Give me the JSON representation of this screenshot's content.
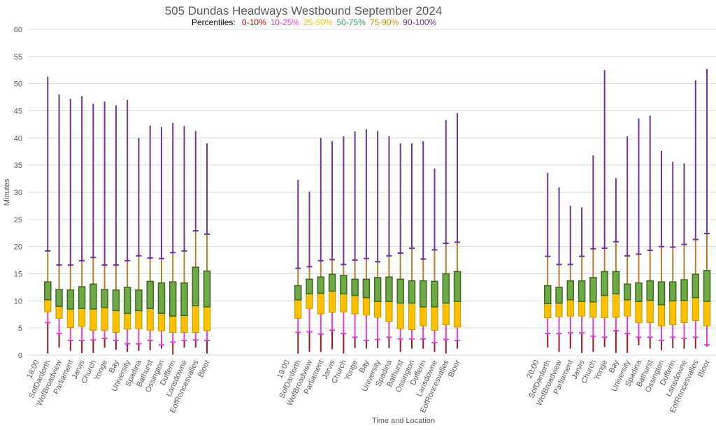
{
  "chart_data": {
    "type": "box",
    "title": "505 Dundas Headways Westbound September 2024",
    "legend_prefix": "Percentiles:",
    "legend": [
      {
        "label": "0-10%",
        "color": "#c00000"
      },
      {
        "label": "10-25%",
        "color": "#e040d8"
      },
      {
        "label": "25-50%",
        "color": "#ffc000"
      },
      {
        "label": "50-75%",
        "color": "#2e9e5e"
      },
      {
        "label": "75-90%",
        "color": "#c09000"
      },
      {
        "label": "90-100%",
        "color": "#7030a0"
      }
    ],
    "legend_placement": "top-center",
    "xlabel": "Time and Location",
    "ylabel": "Minutes",
    "ylim": [
      0,
      60
    ],
    "yticks": [
      0,
      5,
      10,
      15,
      20,
      25,
      30,
      35,
      40,
      45,
      50,
      55,
      60
    ],
    "grid": true,
    "series_colors": {
      "p0_p10": "#a01818",
      "p10_p25": "#e040d8",
      "p25_p50": "#ffc000",
      "p50_p75": "#70a845",
      "p75_p90": "#c07a30",
      "p90_p100": "#7030a0",
      "box_edge_low": "#c9a000",
      "box_edge_high": "#3a6a20"
    },
    "groups": [
      {
        "time": "18:00",
        "stations": [
          {
            "name": "SofDanforth",
            "min": 0.3,
            "p10": 6.0,
            "p25": 8.0,
            "median": 10.2,
            "p75": 13.5,
            "p90": 19.2,
            "max": 51.3
          },
          {
            "name": "WofBroadview",
            "min": 1.4,
            "p10": 4.0,
            "p25": 6.8,
            "median": 9.0,
            "p75": 12.1,
            "p90": 16.6,
            "max": 48.0
          },
          {
            "name": "Parliament",
            "min": 0.8,
            "p10": 2.7,
            "p25": 5.1,
            "median": 8.5,
            "p75": 12.0,
            "p90": 16.6,
            "max": 47.2
          },
          {
            "name": "Jarvis",
            "min": 0.4,
            "p10": 2.7,
            "p25": 5.3,
            "median": 8.6,
            "p75": 12.6,
            "p90": 17.4,
            "max": 47.7
          },
          {
            "name": "Church",
            "min": 0.4,
            "p10": 2.8,
            "p25": 4.6,
            "median": 8.5,
            "p75": 13.1,
            "p90": 18.0,
            "max": 46.3
          },
          {
            "name": "Yonge",
            "min": 1.4,
            "p10": 3.1,
            "p25": 4.6,
            "median": 8.8,
            "p75": 12.1,
            "p90": 16.6,
            "max": 46.7
          },
          {
            "name": "Bay",
            "min": 1.0,
            "p10": 2.7,
            "p25": 4.2,
            "median": 8.2,
            "p75": 12.0,
            "p90": 16.6,
            "max": 46.0
          },
          {
            "name": "University",
            "min": 0.6,
            "p10": 2.1,
            "p25": 4.8,
            "median": 7.7,
            "p75": 12.5,
            "p90": 17.4,
            "max": 47.0
          },
          {
            "name": "Spadina",
            "min": 0.8,
            "p10": 2.1,
            "p25": 4.9,
            "median": 8.2,
            "p75": 12.0,
            "p90": 18.3,
            "max": 40.0
          },
          {
            "name": "Bathurst",
            "min": 0.9,
            "p10": 2.7,
            "p25": 4.6,
            "median": 8.6,
            "p75": 13.6,
            "p90": 17.9,
            "max": 42.3
          },
          {
            "name": "Ossington",
            "min": 1.2,
            "p10": 1.9,
            "p25": 4.5,
            "median": 7.7,
            "p75": 13.3,
            "p90": 17.8,
            "max": 42.0
          },
          {
            "name": "Dufferin",
            "min": 0.1,
            "p10": 2.4,
            "p25": 4.2,
            "median": 7.2,
            "p75": 13.5,
            "p90": 18.9,
            "max": 42.8
          },
          {
            "name": "Lansdowne",
            "min": 1.4,
            "p10": 2.7,
            "p25": 4.2,
            "median": 7.3,
            "p75": 13.3,
            "p90": 19.2,
            "max": 42.2
          },
          {
            "name": "EofRoncesvalles",
            "min": 1.4,
            "p10": 2.8,
            "p25": 4.2,
            "median": 9.1,
            "p75": 16.2,
            "p90": 22.9,
            "max": 41.3
          },
          {
            "name": "Bloor",
            "min": 0.3,
            "p10": 2.7,
            "p25": 4.5,
            "median": 8.9,
            "p75": 15.5,
            "p90": 22.3,
            "max": 39.0
          }
        ]
      },
      {
        "time": "19:00",
        "stations": [
          {
            "name": "SofDanforth",
            "min": 0.3,
            "p10": 4.2,
            "p25": 6.8,
            "median": 10.2,
            "p75": 12.8,
            "p90": 16.0,
            "max": 32.3
          },
          {
            "name": "WofBroadview",
            "min": 0.6,
            "p10": 4.3,
            "p25": 8.6,
            "median": 11.3,
            "p75": 14.0,
            "p90": 16.3,
            "max": 30.1
          },
          {
            "name": "Parliament",
            "min": 0.6,
            "p10": 3.9,
            "p25": 7.6,
            "median": 11.4,
            "p75": 14.4,
            "p90": 17.4,
            "max": 40.0
          },
          {
            "name": "Jarvis",
            "min": 1.1,
            "p10": 4.6,
            "p25": 7.9,
            "median": 11.8,
            "p75": 14.9,
            "p90": 17.6,
            "max": 39.4
          },
          {
            "name": "Church",
            "min": 0.3,
            "p10": 4.0,
            "p25": 8.0,
            "median": 11.3,
            "p75": 14.7,
            "p90": 16.7,
            "max": 40.3
          },
          {
            "name": "Yonge",
            "min": 1.3,
            "p10": 3.3,
            "p25": 7.6,
            "median": 11.0,
            "p75": 14.0,
            "p90": 17.5,
            "max": 41.2
          },
          {
            "name": "Bay",
            "min": 1.2,
            "p10": 2.7,
            "p25": 7.4,
            "median": 10.6,
            "p75": 14.0,
            "p90": 17.8,
            "max": 41.6
          },
          {
            "name": "University",
            "min": 1.3,
            "p10": 2.9,
            "p25": 7.0,
            "median": 9.9,
            "p75": 14.3,
            "p90": 17.2,
            "max": 41.3
          },
          {
            "name": "Spadina",
            "min": 1.3,
            "p10": 3.3,
            "p25": 6.2,
            "median": 9.9,
            "p75": 14.4,
            "p90": 18.3,
            "max": 40.3
          },
          {
            "name": "Bathurst",
            "min": 0.6,
            "p10": 3.0,
            "p25": 4.9,
            "median": 9.6,
            "p75": 14.0,
            "p90": 18.8,
            "max": 39.0
          },
          {
            "name": "Ossington",
            "min": 1.2,
            "p10": 3.0,
            "p25": 4.7,
            "median": 9.6,
            "p75": 13.7,
            "p90": 19.7,
            "max": 39.0
          },
          {
            "name": "Dufferin",
            "min": 1.2,
            "p10": 3.0,
            "p25": 5.4,
            "median": 8.9,
            "p75": 13.7,
            "p90": 17.7,
            "max": 39.4
          },
          {
            "name": "Lansdowne",
            "min": 0.6,
            "p10": 2.3,
            "p25": 4.6,
            "median": 8.9,
            "p75": 13.6,
            "p90": 19.4,
            "max": 34.4
          },
          {
            "name": "EofRoncesvalles",
            "min": 0.3,
            "p10": 2.9,
            "p25": 5.6,
            "median": 9.6,
            "p75": 15.0,
            "p90": 20.6,
            "max": 43.3
          },
          {
            "name": "Bloor",
            "min": 1.2,
            "p10": 2.7,
            "p25": 5.2,
            "median": 9.9,
            "p75": 15.4,
            "p90": 20.8,
            "max": 44.6
          }
        ]
      },
      {
        "time": "20:00",
        "stations": [
          {
            "name": "SofDanforth",
            "min": 1.4,
            "p10": 4.0,
            "p25": 6.9,
            "median": 9.5,
            "p75": 12.8,
            "p90": 18.2,
            "max": 33.6
          },
          {
            "name": "WofBroadview",
            "min": 0.6,
            "p10": 4.0,
            "p25": 7.1,
            "median": 9.6,
            "p75": 12.5,
            "p90": 16.7,
            "max": 30.9
          },
          {
            "name": "Parliament",
            "min": 1.2,
            "p10": 4.1,
            "p25": 7.2,
            "median": 10.2,
            "p75": 13.7,
            "p90": 16.7,
            "max": 27.5
          },
          {
            "name": "Jarvis",
            "min": 0.4,
            "p10": 4.1,
            "p25": 7.2,
            "median": 9.9,
            "p75": 13.7,
            "p90": 18.2,
            "max": 27.2
          },
          {
            "name": "Church",
            "min": 0.6,
            "p10": 3.5,
            "p25": 7.0,
            "median": 9.8,
            "p75": 14.3,
            "p90": 19.6,
            "max": 36.8
          },
          {
            "name": "Yonge",
            "min": 1.5,
            "p10": 3.3,
            "p25": 6.9,
            "median": 11.0,
            "p75": 15.4,
            "p90": 19.7,
            "max": 52.5
          },
          {
            "name": "Bay",
            "min": 0.4,
            "p10": 4.5,
            "p25": 7.0,
            "median": 11.3,
            "p75": 15.4,
            "p90": 20.9,
            "max": 32.6
          },
          {
            "name": "University",
            "min": 0.4,
            "p10": 4.0,
            "p25": 7.2,
            "median": 10.2,
            "p75": 13.1,
            "p90": 18.3,
            "max": 40.3
          },
          {
            "name": "Spadina",
            "min": 1.8,
            "p10": 3.3,
            "p25": 6.0,
            "median": 9.9,
            "p75": 13.3,
            "p90": 18.6,
            "max": 43.6
          },
          {
            "name": "Bathurst",
            "min": 1.2,
            "p10": 3.3,
            "p25": 6.0,
            "median": 10.1,
            "p75": 13.7,
            "p90": 19.3,
            "max": 44.1
          },
          {
            "name": "Ossington",
            "min": 0.9,
            "p10": 2.7,
            "p25": 5.4,
            "median": 9.3,
            "p75": 13.5,
            "p90": 20.0,
            "max": 37.6
          },
          {
            "name": "Dufferin",
            "min": 1.3,
            "p10": 3.3,
            "p25": 5.6,
            "median": 10.0,
            "p75": 13.5,
            "p90": 19.9,
            "max": 35.6
          },
          {
            "name": "Lansdowne",
            "min": 1.2,
            "p10": 3.1,
            "p25": 6.0,
            "median": 10.1,
            "p75": 13.9,
            "p90": 20.4,
            "max": 35.3
          },
          {
            "name": "EofRoncesvalles",
            "min": 1.2,
            "p10": 3.3,
            "p25": 6.4,
            "median": 10.6,
            "p75": 14.9,
            "p90": 21.3,
            "max": 50.6
          },
          {
            "name": "Bloor",
            "min": 1.6,
            "p10": 1.9,
            "p25": 5.4,
            "median": 9.9,
            "p75": 15.6,
            "p90": 22.4,
            "max": 52.7
          }
        ]
      }
    ]
  }
}
